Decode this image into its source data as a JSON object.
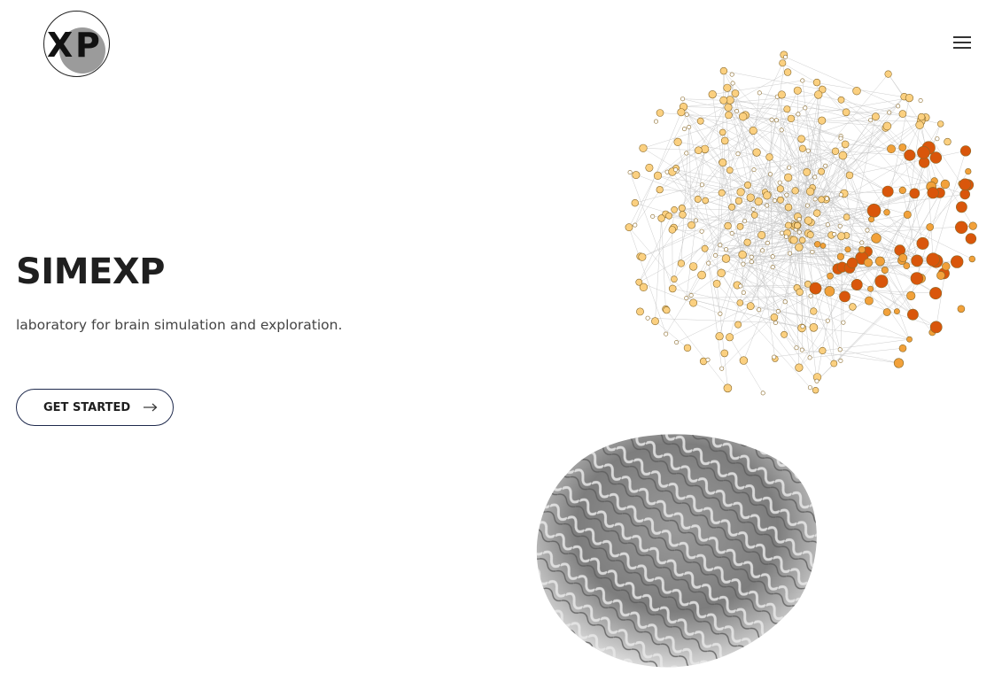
{
  "header": {
    "logo_icon": "xp-logo-icon",
    "menu_icon": "hamburger-menu-icon"
  },
  "hero": {
    "title": "SIMEXP",
    "subtitle": "laboratory for brain simulation and exploration.",
    "cta_label": "GET STARTED",
    "cta_icon": "arrow-right-icon"
  },
  "illustration": {
    "network_icon": "brain-network-graph-icon",
    "brain_icon": "brain-image-icon"
  },
  "colors": {
    "text": "#1f1f1f",
    "button_border": "#1f2a4d",
    "node_light": "#fbd080",
    "node_mid": "#f2a13a",
    "node_dark": "#d9560b"
  }
}
